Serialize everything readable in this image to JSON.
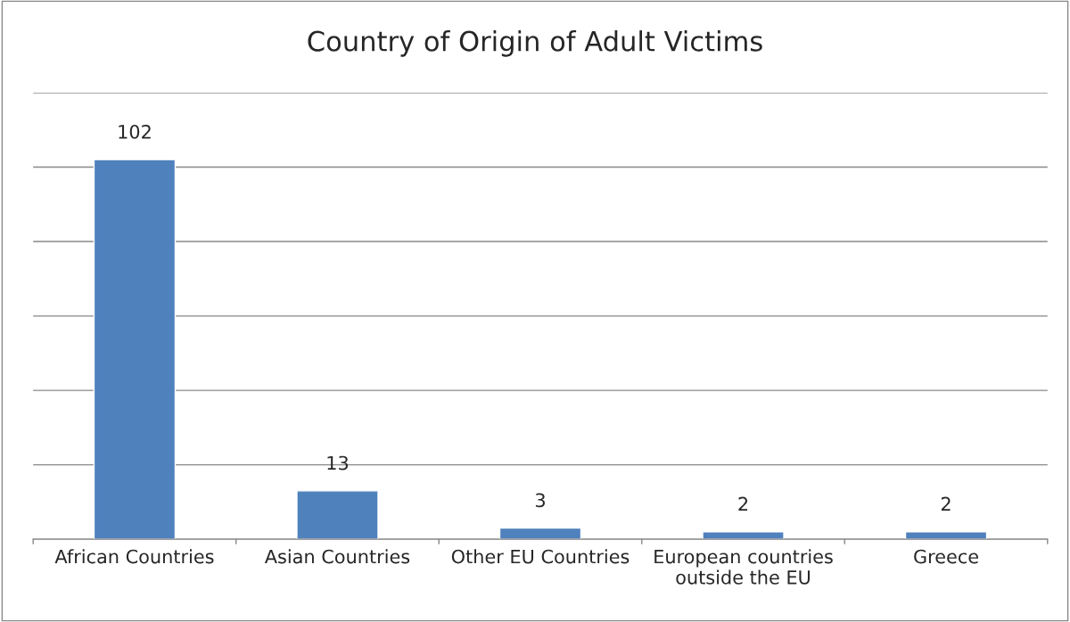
{
  "chart_data": {
    "type": "bar",
    "title": "Country of Origin of Adult Victims",
    "categories": [
      "African Countries",
      "Asian Countries",
      "Other EU Countries",
      "European countries\noutside the EU",
      "Greece"
    ],
    "values": [
      102,
      13,
      3,
      2,
      2
    ],
    "color": "#4f81bd",
    "ylim": [
      0,
      120
    ],
    "yticks": [
      {
        "value": 0,
        "label": null
      },
      {
        "value": 20,
        "label": null
      },
      {
        "value": 40,
        "label": null
      },
      {
        "value": 60,
        "label": null
      },
      {
        "value": 80,
        "label": null
      },
      {
        "value": 100,
        "label": null
      },
      {
        "value": 120,
        "label": null
      }
    ],
    "tick_labels": "x",
    "grid": "y",
    "data_labels": true
  }
}
